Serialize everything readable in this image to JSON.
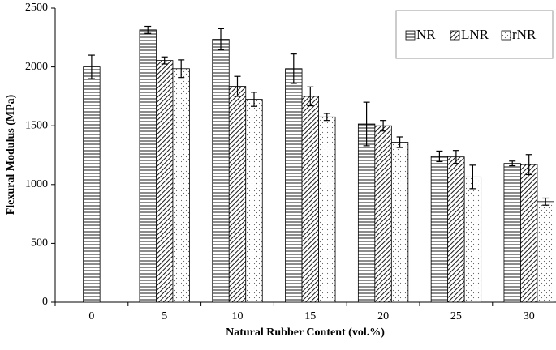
{
  "chart_data": {
    "type": "bar",
    "x_label": "Natural Rubber Content (vol.%)",
    "y_label": "Flexural Modulus (MPa)",
    "categories": [
      "0",
      "5",
      "10",
      "15",
      "20",
      "25",
      "30"
    ],
    "series": [
      {
        "name": "NR",
        "color": "#000000",
        "pattern": "horizontal",
        "values": [
          2000,
          2315,
          2235,
          1985,
          1515,
          1240,
          1180
        ],
        "errors": [
          100,
          30,
          90,
          125,
          185,
          45,
          20
        ]
      },
      {
        "name": "LNR",
        "color": "#000000",
        "pattern": "diagonal",
        "values": [
          null,
          2055,
          1835,
          1750,
          1500,
          1235,
          1170
        ],
        "errors": [
          null,
          30,
          85,
          80,
          45,
          55,
          85
        ]
      },
      {
        "name": "rNR",
        "color": "#000000",
        "pattern": "dots",
        "values": [
          null,
          1985,
          1725,
          1575,
          1360,
          1065,
          855
        ],
        "errors": [
          null,
          75,
          60,
          30,
          45,
          100,
          30
        ]
      }
    ],
    "ylim": [
      0,
      2500
    ],
    "yticks": [
      0,
      500,
      1000,
      1500,
      2000,
      2500
    ],
    "legend": "top-right"
  }
}
